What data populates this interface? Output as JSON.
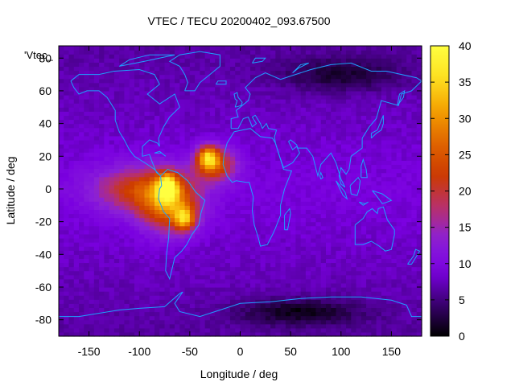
{
  "chart_data": {
    "type": "heatmap",
    "title": "VTEC / TECU 20200402_093.67500",
    "xlabel": "Longitude / deg",
    "ylabel": "Latitude / deg",
    "legend_label": "'Vtec_",
    "xlim": [
      -180,
      180
    ],
    "ylim": [
      -90,
      87.5
    ],
    "xticks": [
      -150,
      -100,
      -50,
      0,
      50,
      100,
      150
    ],
    "yticks": [
      -80,
      -60,
      -40,
      -20,
      0,
      20,
      40,
      60,
      80
    ],
    "colorbar": {
      "min": 0,
      "max": 40,
      "ticks": [
        0,
        5,
        10,
        15,
        20,
        25,
        30,
        35,
        40
      ]
    },
    "colormap": [
      "#000000",
      "#3a0070",
      "#7a00e0",
      "#8a20d8",
      "#b8306a",
      "#cc3a00",
      "#e06400",
      "#f4a000",
      "#fde020",
      "#ffff40"
    ],
    "background_level": 9,
    "features": [
      {
        "name": "equatorial anomaly south america west",
        "lon": -100,
        "lat": 0,
        "value": 22,
        "lon_spread": 45,
        "lat_spread": 14
      },
      {
        "name": "south american crest",
        "lon": -70,
        "lat": -10,
        "value": 27,
        "lon_spread": 28,
        "lat_spread": 16
      },
      {
        "name": "atlantic northern crest",
        "lon": -25,
        "lat": 15,
        "value": 25,
        "lon_spread": 20,
        "lat_spread": 10
      },
      {
        "name": "peak south america",
        "lon": -72,
        "lat": 2,
        "value": 30,
        "lon_spread": 10,
        "lat_spread": 8
      },
      {
        "name": "peak northern crest",
        "lon": -32,
        "lat": 20,
        "value": 27,
        "lon_spread": 10,
        "lat_spread": 7
      },
      {
        "name": "peak southern crest",
        "lon": -55,
        "lat": -18,
        "value": 26,
        "lon_spread": 10,
        "lat_spread": 7
      },
      {
        "name": "high latitude trough north",
        "lon": 100,
        "lat": 70,
        "value": 4,
        "lon_spread": 60,
        "lat_spread": 10
      },
      {
        "name": "antarctic trough",
        "lon": 60,
        "lat": -75,
        "value": 3,
        "lon_spread": 60,
        "lat_spread": 8
      }
    ]
  },
  "coastline_color": "#1ea0ff"
}
